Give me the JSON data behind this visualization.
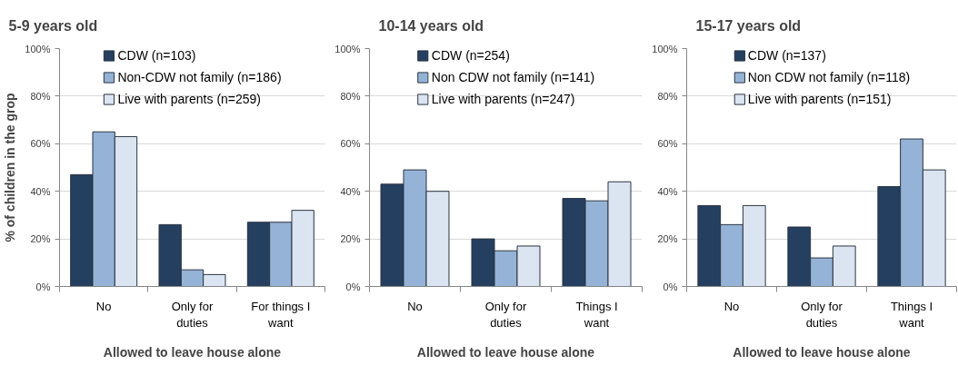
{
  "chart_data": [
    {
      "type": "bar",
      "title": "5-9 years old",
      "xlabel": "Allowed to leave house alone",
      "ylabel": "% of children in the grop",
      "categories": [
        "No",
        "Only for duties",
        "For things I want"
      ],
      "series": [
        {
          "name": "CDW (n=103)",
          "color": "#243f60",
          "values": [
            47,
            26,
            27
          ]
        },
        {
          "name": "Non-CDW not family (n=186)",
          "color": "#95b3d7",
          "values": [
            65,
            7,
            27
          ]
        },
        {
          "name": "Live with parents (n=259)",
          "color": "#dbe5f1",
          "values": [
            63,
            5,
            32
          ]
        }
      ],
      "ylim": [
        0,
        100
      ],
      "yticks": [
        {
          "value": 0,
          "label": "0%"
        },
        {
          "value": 20,
          "label": "20%"
        },
        {
          "value": 40,
          "label": "40%"
        },
        {
          "value": 60,
          "label": "60%"
        },
        {
          "value": 80,
          "label": "80%"
        },
        {
          "value": 100,
          "label": "100%"
        }
      ],
      "grid": "y",
      "legend": "top"
    },
    {
      "type": "bar",
      "title": "10-14 years old",
      "xlabel": "Allowed to leave house alone",
      "categories": [
        "No",
        "Only for duties",
        "Things I want"
      ],
      "series": [
        {
          "name": "CDW (n=254)",
          "color": "#243f60",
          "values": [
            43,
            20,
            37
          ]
        },
        {
          "name": "Non CDW not family (n=141)",
          "color": "#95b3d7",
          "values": [
            49,
            15,
            36
          ]
        },
        {
          "name": "Live with parents (n=247)",
          "color": "#dbe5f1",
          "values": [
            40,
            17,
            44
          ]
        }
      ],
      "ylim": [
        0,
        100
      ],
      "yticks": [
        {
          "value": 0,
          "label": "0%"
        },
        {
          "value": 20,
          "label": "20%"
        },
        {
          "value": 40,
          "label": "40%"
        },
        {
          "value": 60,
          "label": "60%"
        },
        {
          "value": 80,
          "label": "80%"
        },
        {
          "value": 100,
          "label": "100%"
        }
      ],
      "grid": "y",
      "legend": "top"
    },
    {
      "type": "bar",
      "title": "15-17 years old",
      "xlabel": "Allowed to leave house alone",
      "categories": [
        "No",
        "Only for duties",
        "Things I want"
      ],
      "series": [
        {
          "name": "CDW (n=137)",
          "color": "#243f60",
          "values": [
            34,
            25,
            42
          ]
        },
        {
          "name": "Non CDW not family (n=118)",
          "color": "#95b3d7",
          "values": [
            26,
            12,
            62
          ]
        },
        {
          "name": "Live with parents (n=151)",
          "color": "#dbe5f1",
          "values": [
            34,
            17,
            49
          ]
        }
      ],
      "ylim": [
        0,
        100
      ],
      "yticks": [
        {
          "value": 0,
          "label": "0%"
        },
        {
          "value": 20,
          "label": "20%"
        },
        {
          "value": 40,
          "label": "40%"
        },
        {
          "value": 60,
          "label": "60%"
        },
        {
          "value": 80,
          "label": "80%"
        },
        {
          "value": 100,
          "label": "100%"
        }
      ],
      "grid": "y",
      "legend": "top"
    }
  ]
}
